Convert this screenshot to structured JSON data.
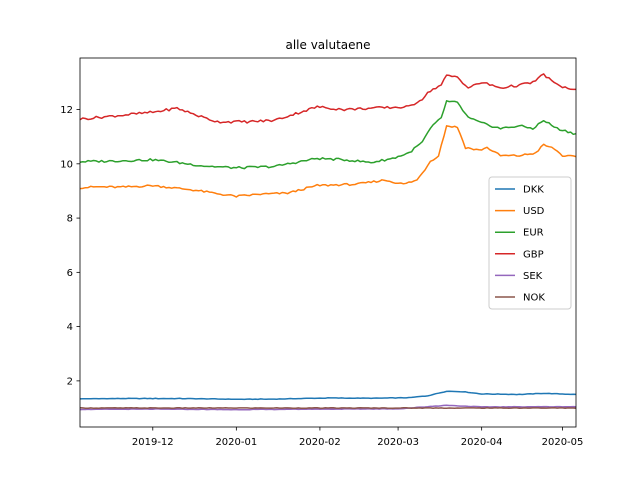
{
  "chart_data": {
    "type": "line",
    "title": "alle valutaene",
    "xlabel": "",
    "ylabel": "",
    "x_start": "2019-11-04",
    "x_end": "2020-05-06",
    "xlim": [
      "2019-11-04",
      "2020-05-06"
    ],
    "ylim": [
      0.3,
      13.9
    ],
    "grid": false,
    "legend_position": "center right",
    "x_ticks": [
      {
        "date": "2019-12-01",
        "label": "2019-12"
      },
      {
        "date": "2020-01-01",
        "label": "2020-01"
      },
      {
        "date": "2020-02-01",
        "label": "2020-02"
      },
      {
        "date": "2020-03-01",
        "label": "2020-03"
      },
      {
        "date": "2020-04-01",
        "label": "2020-04"
      },
      {
        "date": "2020-05-01",
        "label": "2020-05"
      }
    ],
    "y_ticks": [
      {
        "value": 2,
        "label": "2"
      },
      {
        "value": 4,
        "label": "4"
      },
      {
        "value": 6,
        "label": "6"
      },
      {
        "value": 8,
        "label": "8"
      },
      {
        "value": 10,
        "label": "10"
      },
      {
        "value": 12,
        "label": "12"
      }
    ],
    "series": [
      {
        "name": "DKK",
        "color": "#1f77b4",
        "points": [
          [
            "2019-11-04",
            1.34
          ],
          [
            "2019-11-20",
            1.35
          ],
          [
            "2019-12-10",
            1.35
          ],
          [
            "2019-12-20",
            1.34
          ],
          [
            "2020-01-01",
            1.32
          ],
          [
            "2020-01-15",
            1.33
          ],
          [
            "2020-02-05",
            1.37
          ],
          [
            "2020-02-20",
            1.36
          ],
          [
            "2020-03-05",
            1.38
          ],
          [
            "2020-03-12",
            1.45
          ],
          [
            "2020-03-19",
            1.62
          ],
          [
            "2020-03-25",
            1.6
          ],
          [
            "2020-04-01",
            1.52
          ],
          [
            "2020-04-15",
            1.5
          ],
          [
            "2020-04-24",
            1.54
          ],
          [
            "2020-05-06",
            1.5
          ]
        ]
      },
      {
        "name": "USD",
        "color": "#ff7f0e",
        "points": [
          [
            "2019-11-04",
            9.12
          ],
          [
            "2019-11-10",
            9.15
          ],
          [
            "2019-11-20",
            9.14
          ],
          [
            "2019-12-01",
            9.2
          ],
          [
            "2019-12-10",
            9.1
          ],
          [
            "2019-12-15",
            9.05
          ],
          [
            "2019-12-25",
            8.9
          ],
          [
            "2020-01-01",
            8.8
          ],
          [
            "2020-01-10",
            8.88
          ],
          [
            "2020-01-20",
            8.92
          ],
          [
            "2020-01-31",
            9.2
          ],
          [
            "2020-02-15",
            9.25
          ],
          [
            "2020-02-25",
            9.4
          ],
          [
            "2020-03-03",
            9.25
          ],
          [
            "2020-03-08",
            9.4
          ],
          [
            "2020-03-11",
            9.8
          ],
          [
            "2020-03-13",
            10.1
          ],
          [
            "2020-03-16",
            10.3
          ],
          [
            "2020-03-19",
            11.4
          ],
          [
            "2020-03-23",
            11.35
          ],
          [
            "2020-03-26",
            10.6
          ],
          [
            "2020-03-31",
            10.5
          ],
          [
            "2020-04-03",
            10.6
          ],
          [
            "2020-04-08",
            10.3
          ],
          [
            "2020-04-15",
            10.3
          ],
          [
            "2020-04-21",
            10.4
          ],
          [
            "2020-04-24",
            10.7
          ],
          [
            "2020-04-28",
            10.55
          ],
          [
            "2020-05-01",
            10.3
          ],
          [
            "2020-05-06",
            10.25
          ]
        ]
      },
      {
        "name": "EUR",
        "color": "#2ca02c",
        "points": [
          [
            "2019-11-04",
            10.08
          ],
          [
            "2019-11-15",
            10.1
          ],
          [
            "2019-12-01",
            10.15
          ],
          [
            "2019-12-10",
            10.05
          ],
          [
            "2019-12-20",
            9.92
          ],
          [
            "2020-01-01",
            9.85
          ],
          [
            "2020-01-15",
            9.9
          ],
          [
            "2020-01-31",
            10.2
          ],
          [
            "2020-02-10",
            10.15
          ],
          [
            "2020-02-20",
            10.05
          ],
          [
            "2020-02-28",
            10.2
          ],
          [
            "2020-03-05",
            10.4
          ],
          [
            "2020-03-10",
            10.8
          ],
          [
            "2020-03-13",
            11.3
          ],
          [
            "2020-03-17",
            11.7
          ],
          [
            "2020-03-19",
            12.3
          ],
          [
            "2020-03-23",
            12.25
          ],
          [
            "2020-03-27",
            11.7
          ],
          [
            "2020-04-01",
            11.5
          ],
          [
            "2020-04-08",
            11.3
          ],
          [
            "2020-04-15",
            11.4
          ],
          [
            "2020-04-20",
            11.3
          ],
          [
            "2020-04-24",
            11.6
          ],
          [
            "2020-04-29",
            11.3
          ],
          [
            "2020-05-06",
            11.1
          ]
        ]
      },
      {
        "name": "GBP",
        "color": "#d62728",
        "points": [
          [
            "2019-11-04",
            11.65
          ],
          [
            "2019-11-15",
            11.75
          ],
          [
            "2019-12-01",
            11.9
          ],
          [
            "2019-12-10",
            12.05
          ],
          [
            "2019-12-20",
            11.7
          ],
          [
            "2019-12-25",
            11.55
          ],
          [
            "2020-01-05",
            11.55
          ],
          [
            "2020-01-15",
            11.6
          ],
          [
            "2020-01-31",
            12.1
          ],
          [
            "2020-02-10",
            12.0
          ],
          [
            "2020-02-20",
            12.05
          ],
          [
            "2020-03-05",
            12.1
          ],
          [
            "2020-03-10",
            12.4
          ],
          [
            "2020-03-13",
            12.7
          ],
          [
            "2020-03-17",
            12.9
          ],
          [
            "2020-03-19",
            13.25
          ],
          [
            "2020-03-23",
            13.2
          ],
          [
            "2020-03-27",
            12.8
          ],
          [
            "2020-04-01",
            13.0
          ],
          [
            "2020-04-08",
            12.8
          ],
          [
            "2020-04-15",
            12.9
          ],
          [
            "2020-04-20",
            13.0
          ],
          [
            "2020-04-24",
            13.3
          ],
          [
            "2020-04-29",
            12.9
          ],
          [
            "2020-05-06",
            12.7
          ]
        ]
      },
      {
        "name": "SEK",
        "color": "#9467bd",
        "points": [
          [
            "2019-11-04",
            0.95
          ],
          [
            "2019-12-01",
            0.96
          ],
          [
            "2020-01-01",
            0.94
          ],
          [
            "2020-02-01",
            0.96
          ],
          [
            "2020-03-01",
            0.97
          ],
          [
            "2020-03-19",
            1.1
          ],
          [
            "2020-04-01",
            1.04
          ],
          [
            "2020-05-06",
            1.05
          ]
        ]
      },
      {
        "name": "NOK",
        "color": "#8c564b",
        "points": [
          [
            "2019-11-04",
            1.0
          ],
          [
            "2020-02-01",
            1.0
          ],
          [
            "2020-03-15",
            1.0
          ],
          [
            "2020-05-06",
            1.0
          ]
        ]
      }
    ]
  }
}
